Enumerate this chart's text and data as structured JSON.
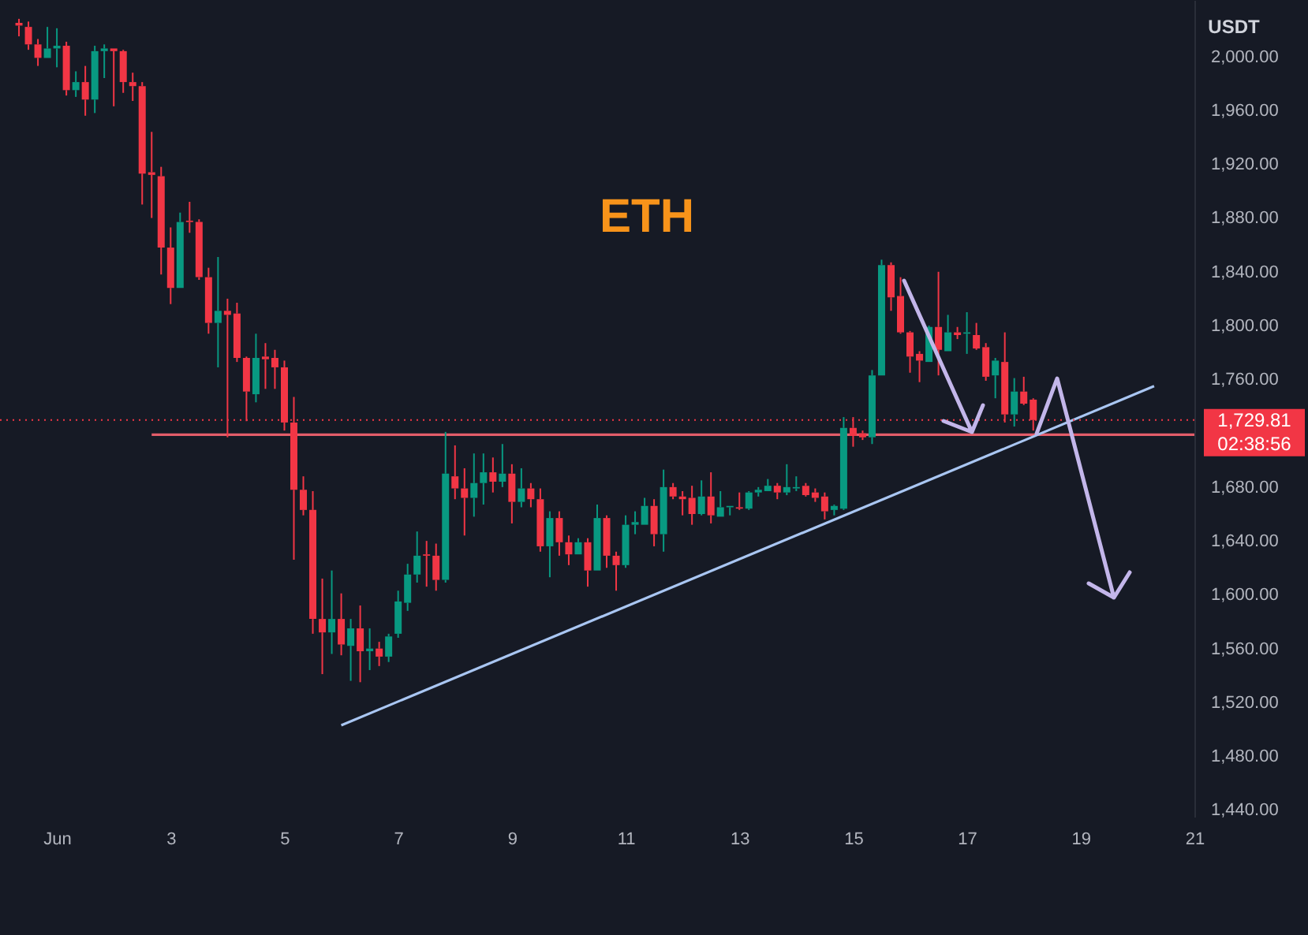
{
  "chart_data": {
    "type": "candlestick",
    "title": "ETH",
    "ylabel": "USDT",
    "annotations": [
      "02:38:56"
    ],
    "x": [
      "--05-31T08:00",
      "--05-31T12:00",
      "--05-31T16:00",
      "--05-31T20:00",
      "--06-01T00:00",
      "--06-01T04:00",
      "--06-01T08:00",
      "--06-01T12:00",
      "--06-01T16:00",
      "--06-01T20:00",
      "--06-02T00:00",
      "--06-02T04:00",
      "--06-02T08:00",
      "--06-02T12:00",
      "--06-02T16:00",
      "--06-02T20:00",
      "--06-03T00:00",
      "--06-03T04:00",
      "--06-03T08:00",
      "--06-03T12:00",
      "--06-03T16:00",
      "--06-03T20:00",
      "--06-04T00:00",
      "--06-04T04:00",
      "--06-04T08:00",
      "--06-04T12:00",
      "--06-04T16:00",
      "--06-04T20:00",
      "--06-05T00:00",
      "--06-05T04:00",
      "--06-05T08:00",
      "--06-05T12:00",
      "--06-05T16:00",
      "--06-05T20:00",
      "--06-06T00:00",
      "--06-06T04:00",
      "--06-06T08:00",
      "--06-06T12:00",
      "--06-06T16:00",
      "--06-06T20:00",
      "--06-07T00:00",
      "--06-07T04:00",
      "--06-07T08:00",
      "--06-07T12:00",
      "--06-07T16:00",
      "--06-07T20:00",
      "--06-08T00:00",
      "--06-08T04:00",
      "--06-08T08:00",
      "--06-08T12:00",
      "--06-08T16:00",
      "--06-08T20:00",
      "--06-09T00:00",
      "--06-09T04:00",
      "--06-09T08:00",
      "--06-09T12:00",
      "--06-09T16:00",
      "--06-09T20:00",
      "--06-10T00:00",
      "--06-10T04:00",
      "--06-10T08:00",
      "--06-10T12:00",
      "--06-10T16:00",
      "--06-10T20:00",
      "--06-11T00:00",
      "--06-11T04:00",
      "--06-11T08:00",
      "--06-11T12:00",
      "--06-11T16:00",
      "--06-11T20:00",
      "--06-12T00:00",
      "--06-12T04:00",
      "--06-12T08:00",
      "--06-12T12:00",
      "--06-12T16:00",
      "--06-12T20:00",
      "--06-13T00:00",
      "--06-13T04:00",
      "--06-13T08:00",
      "--06-13T12:00",
      "--06-13T16:00",
      "--06-13T20:00",
      "--06-14T00:00",
      "--06-14T04:00",
      "--06-14T08:00",
      "--06-14T12:00",
      "--06-14T16:00",
      "--06-14T20:00",
      "--06-15T00:00",
      "--06-15T04:00",
      "--06-15T08:00",
      "--06-15T12:00",
      "--06-15T16:00",
      "--06-15T20:00",
      "--06-16T00:00",
      "--06-16T04:00",
      "--06-16T08:00",
      "--06-16T12:00",
      "--06-16T16:00",
      "--06-16T20:00",
      "--06-17T00:00",
      "--06-17T04:00",
      "--06-17T08:00",
      "--06-17T12:00",
      "--06-17T16:00",
      "--06-17T20:00",
      "--06-18T00:00",
      "--06-18T04:00"
    ],
    "ohlc": [
      [
        2025,
        2028,
        2015,
        2023
      ],
      [
        2022,
        2026,
        2005,
        2009
      ],
      [
        2009,
        2013,
        1993,
        1999
      ],
      [
        1999,
        2022,
        1999,
        2006
      ],
      [
        2006,
        2021,
        1992,
        2008
      ],
      [
        2008,
        2011,
        1971,
        1975
      ],
      [
        1975,
        1989,
        1970,
        1981
      ],
      [
        1981,
        1993,
        1956,
        1968
      ],
      [
        1968,
        2008,
        1958,
        2004
      ],
      [
        2004,
        2009,
        1984,
        2006
      ],
      [
        2006,
        2006,
        1963,
        2004
      ],
      [
        2004,
        2005,
        1973,
        1981
      ],
      [
        1981,
        1988,
        1967,
        1978
      ],
      [
        1978,
        1981,
        1890,
        1913
      ],
      [
        1914,
        1944,
        1880,
        1912
      ],
      [
        1911,
        1918,
        1838,
        1858
      ],
      [
        1858,
        1873,
        1816,
        1828
      ],
      [
        1828,
        1884,
        1828,
        1877
      ],
      [
        1878,
        1892,
        1869,
        1877
      ],
      [
        1877,
        1879,
        1834,
        1836
      ],
      [
        1836,
        1843,
        1794,
        1802
      ],
      [
        1802,
        1851,
        1769,
        1811
      ],
      [
        1811,
        1820,
        1717,
        1808
      ],
      [
        1809,
        1817,
        1773,
        1776
      ],
      [
        1776,
        1777,
        1729,
        1751
      ],
      [
        1749,
        1794,
        1743,
        1776
      ],
      [
        1777,
        1787,
        1753,
        1775
      ],
      [
        1776,
        1782,
        1753,
        1769
      ],
      [
        1769,
        1774,
        1722,
        1728
      ],
      [
        1728,
        1747,
        1626,
        1678
      ],
      [
        1678,
        1688,
        1659,
        1663
      ],
      [
        1663,
        1677,
        1571,
        1582
      ],
      [
        1582,
        1612,
        1541,
        1572
      ],
      [
        1572,
        1618,
        1556,
        1582
      ],
      [
        1582,
        1601,
        1555,
        1563
      ],
      [
        1562,
        1582,
        1536,
        1575
      ],
      [
        1575,
        1592,
        1535,
        1558
      ],
      [
        1558,
        1575,
        1544,
        1560
      ],
      [
        1560,
        1565,
        1547,
        1554
      ],
      [
        1554,
        1571,
        1550,
        1569
      ],
      [
        1571,
        1603,
        1568,
        1595
      ],
      [
        1594,
        1623,
        1588,
        1615
      ],
      [
        1615,
        1647,
        1609,
        1629
      ],
      [
        1630,
        1640,
        1606,
        1629
      ],
      [
        1629,
        1638,
        1603,
        1611
      ],
      [
        1611,
        1721,
        1609,
        1690
      ],
      [
        1688,
        1711,
        1671,
        1679
      ],
      [
        1679,
        1694,
        1644,
        1672
      ],
      [
        1672,
        1705,
        1658,
        1683
      ],
      [
        1683,
        1705,
        1667,
        1691
      ],
      [
        1691,
        1702,
        1676,
        1684
      ],
      [
        1684,
        1712,
        1680,
        1690
      ],
      [
        1690,
        1697,
        1653,
        1669
      ],
      [
        1669,
        1694,
        1665,
        1679
      ],
      [
        1679,
        1683,
        1665,
        1671
      ],
      [
        1671,
        1679,
        1632,
        1636
      ],
      [
        1636,
        1662,
        1613,
        1657
      ],
      [
        1657,
        1662,
        1629,
        1639
      ],
      [
        1639,
        1644,
        1622,
        1630
      ],
      [
        1630,
        1642,
        1630,
        1639
      ],
      [
        1639,
        1642,
        1606,
        1618
      ],
      [
        1618,
        1667,
        1618,
        1657
      ],
      [
        1657,
        1659,
        1620,
        1629
      ],
      [
        1629,
        1632,
        1603,
        1622
      ],
      [
        1622,
        1659,
        1620,
        1652
      ],
      [
        1652,
        1662,
        1645,
        1654
      ],
      [
        1652,
        1672,
        1652,
        1666
      ],
      [
        1666,
        1671,
        1636,
        1645
      ],
      [
        1645,
        1693,
        1632,
        1680
      ],
      [
        1680,
        1683,
        1671,
        1673
      ],
      [
        1673,
        1677,
        1659,
        1671
      ],
      [
        1672,
        1681,
        1652,
        1660
      ],
      [
        1660,
        1685,
        1659,
        1673
      ],
      [
        1673,
        1691,
        1653,
        1659
      ],
      [
        1658,
        1677,
        1658,
        1665
      ],
      [
        1665,
        1666,
        1659,
        1666
      ],
      [
        1665,
        1676,
        1663,
        1664
      ],
      [
        1664,
        1677,
        1663,
        1676
      ],
      [
        1676,
        1680,
        1673,
        1678
      ],
      [
        1677,
        1686,
        1677,
        1681
      ],
      [
        1681,
        1683,
        1671,
        1676
      ],
      [
        1676,
        1697,
        1674,
        1680
      ],
      [
        1679,
        1688,
        1677,
        1680
      ],
      [
        1681,
        1683,
        1673,
        1674
      ],
      [
        1676,
        1679,
        1669,
        1672
      ],
      [
        1673,
        1676,
        1656,
        1662
      ],
      [
        1663,
        1667,
        1659,
        1666
      ],
      [
        1664,
        1732,
        1663,
        1724
      ],
      [
        1724,
        1732,
        1710,
        1718
      ],
      [
        1720,
        1722,
        1715,
        1717
      ],
      [
        1717,
        1767,
        1712,
        1763
      ],
      [
        1763,
        1849,
        1763,
        1845
      ],
      [
        1845,
        1847,
        1811,
        1821
      ],
      [
        1822,
        1836,
        1794,
        1795
      ],
      [
        1795,
        1796,
        1765,
        1777
      ],
      [
        1779,
        1781,
        1758,
        1774
      ],
      [
        1773,
        1800,
        1773,
        1799
      ],
      [
        1799,
        1840,
        1763,
        1782
      ],
      [
        1781,
        1808,
        1781,
        1795
      ],
      [
        1795,
        1799,
        1790,
        1793
      ],
      [
        1794,
        1810,
        1779,
        1795
      ],
      [
        1793,
        1802,
        1782,
        1783
      ],
      [
        1784,
        1787,
        1759,
        1762
      ],
      [
        1763,
        1776,
        1746,
        1774
      ],
      [
        1773,
        1795,
        1728,
        1734
      ],
      [
        1734,
        1761,
        1725,
        1751
      ],
      [
        1751,
        1762,
        1741,
        1742
      ],
      [
        1745,
        1746,
        1722,
        1729.81
      ]
    ],
    "colors": [
      "#f23645",
      "#f23645",
      "#f23645",
      "#089981",
      "#089981",
      "#f23645",
      "#089981",
      "#f23645",
      "#089981",
      "#089981",
      "#f23645",
      "#f23645",
      "#f23645",
      "#f23645",
      "#f23645",
      "#f23645",
      "#f23645",
      "#089981",
      "#f23645",
      "#f23645",
      "#f23645",
      "#089981",
      "#f23645",
      "#f23645",
      "#f23645",
      "#089981",
      "#f23645",
      "#f23645",
      "#f23645",
      "#f23645",
      "#f23645",
      "#f23645",
      "#f23645",
      "#089981",
      "#f23645",
      "#089981",
      "#f23645",
      "#089981",
      "#f23645",
      "#089981",
      "#089981",
      "#089981",
      "#089981",
      "#f23645",
      "#f23645",
      "#089981",
      "#f23645",
      "#f23645",
      "#089981",
      "#089981",
      "#f23645",
      "#089981",
      "#f23645",
      "#089981",
      "#f23645",
      "#f23645",
      "#089981",
      "#f23645",
      "#f23645",
      "#089981",
      "#f23645",
      "#089981",
      "#f23645",
      "#f23645",
      "#089981",
      "#089981",
      "#089981",
      "#f23645",
      "#089981",
      "#f23645",
      "#f23645",
      "#f23645",
      "#089981",
      "#f23645",
      "#089981",
      "#089981",
      "#f23645",
      "#089981",
      "#089981",
      "#089981",
      "#f23645",
      "#089981",
      "#089981",
      "#f23645",
      "#f23645",
      "#f23645",
      "#089981",
      "#089981",
      "#f23645",
      "#f23645",
      "#089981",
      "#089981",
      "#f23645",
      "#f23645",
      "#f23645",
      "#f23645",
      "#089981",
      "#f23645",
      "#089981",
      "#f23645",
      "#089981",
      "#f23645",
      "#f23645",
      "#089981",
      "#f23645",
      "#089981",
      "#f23645",
      "#f23645"
    ],
    "series": [
      {
        "type": "line",
        "x": [
          "--06-02T16:00",
          "--06-21"
        ],
        "values": [
          1719,
          1719
        ],
        "color": "#e35d6a"
      },
      {
        "type": "line",
        "x": [
          "--06-06",
          "--06-20T07:00"
        ],
        "values": [
          1503,
          1755
        ],
        "color": "#a9c6f2"
      }
    ],
    "xlim": [
      "--05-31",
      "--06-21"
    ],
    "xticks": [
      {
        "value": "--06-01",
        "label": "Jun"
      },
      {
        "value": "--06-03",
        "label": "3"
      },
      {
        "value": "--06-05",
        "label": "5"
      },
      {
        "value": "--06-07",
        "label": "7"
      },
      {
        "value": "--06-09",
        "label": "9"
      },
      {
        "value": "--06-11",
        "label": "11"
      },
      {
        "value": "--06-13",
        "label": "13"
      },
      {
        "value": "--06-15",
        "label": "15"
      },
      {
        "value": "--06-17",
        "label": "17"
      },
      {
        "value": "--06-19",
        "label": "19"
      },
      {
        "value": "--06-21",
        "label": "21"
      }
    ],
    "ylim": [
      1435,
      2042
    ],
    "yticks": [
      {
        "value": 1440,
        "label": "1,440.00"
      },
      {
        "value": 1480,
        "label": "1,480.00"
      },
      {
        "value": 1520,
        "label": "1,520.00"
      },
      {
        "value": 1560,
        "label": "1,560.00"
      },
      {
        "value": 1600,
        "label": "1,600.00"
      },
      {
        "value": 1640,
        "label": "1,640.00"
      },
      {
        "value": 1680,
        "label": "1,680.00"
      },
      {
        "value": 1760,
        "label": "1,760.00"
      },
      {
        "value": 1800,
        "label": "1,800.00"
      },
      {
        "value": 1840,
        "label": "1,840.00"
      },
      {
        "value": 1880,
        "label": "1,880.00"
      },
      {
        "value": 1920,
        "label": "1,920.00"
      },
      {
        "value": 1960,
        "label": "1,960.00"
      },
      {
        "value": 2000,
        "label": "2,000.00"
      }
    ],
    "ref_lines": [
      {
        "axis": "y",
        "value": 1729.81,
        "label": "1,729.81",
        "color": "#f23645",
        "line_style": "dotted"
      }
    ]
  }
}
